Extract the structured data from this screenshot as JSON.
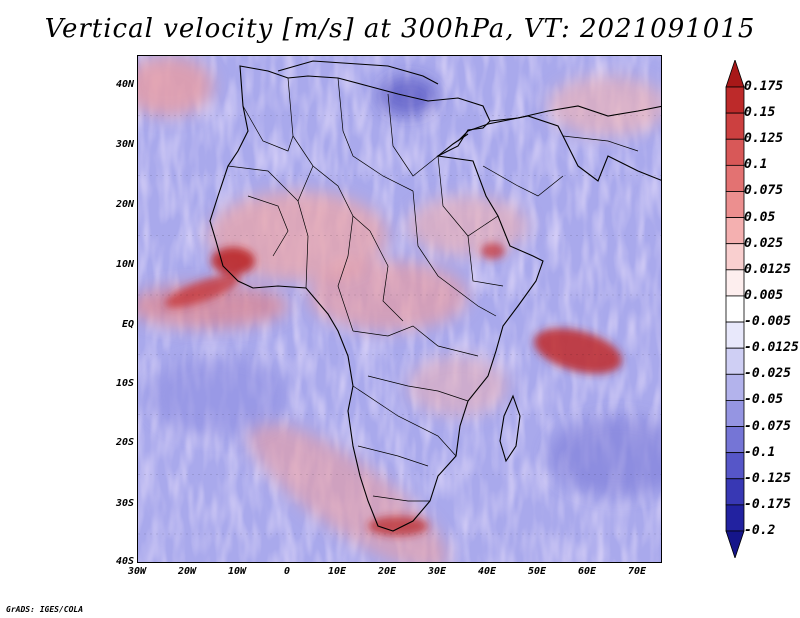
{
  "title": "Vertical velocity [m/s] at 300hPa, VT: 2021091015",
  "footer": "GrADS: IGES/COLA",
  "map": {
    "region": "Africa",
    "lon_range": [
      -30,
      75
    ],
    "lat_range": [
      -40,
      45
    ],
    "lat_labels": [
      "40N",
      "30N",
      "20N",
      "10N",
      "EQ",
      "10S",
      "20S",
      "30S",
      "40S"
    ],
    "lon_labels": [
      "30W",
      "20W",
      "10W",
      "0",
      "10E",
      "20E",
      "30E",
      "40E",
      "50E",
      "60E",
      "70E"
    ]
  },
  "colorbar": {
    "labels": [
      "0.175",
      "0.15",
      "0.125",
      "0.1",
      "0.075",
      "0.05",
      "0.025",
      "0.0125",
      "0.005",
      "-0.005",
      "-0.0125",
      "-0.025",
      "-0.05",
      "-0.075",
      "-0.1",
      "-0.125",
      "-0.175",
      "-0.2"
    ],
    "colors": [
      "#a81818",
      "#bd2a2a",
      "#cc4040",
      "#d85858",
      "#e37272",
      "#ec8f8f",
      "#f4b0b0",
      "#f9cfcf",
      "#fdeeee",
      "#ffffff",
      "#e8e8fb",
      "#cfcff4",
      "#b3b3ec",
      "#9595e2",
      "#7575d6",
      "#5656c8",
      "#3838b4",
      "#2222a0",
      "#15158a"
    ]
  }
}
